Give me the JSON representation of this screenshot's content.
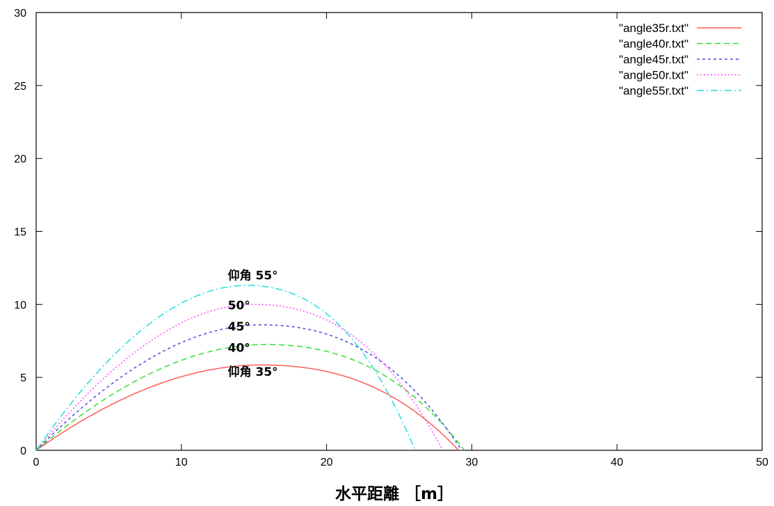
{
  "chart_data": {
    "type": "line",
    "title": "",
    "xlabel": "水平距離 ［m］",
    "ylabel": "",
    "xlim": [
      0,
      50
    ],
    "ylim": [
      0,
      30
    ],
    "x_ticks": [
      0,
      10,
      20,
      30,
      40,
      50
    ],
    "y_ticks": [
      0,
      5,
      10,
      15,
      20,
      25,
      30
    ],
    "grid": false,
    "legend_position": "top-right",
    "series": [
      {
        "name": "\"angle35r.txt\"",
        "color": "#ff5a5a",
        "dash": "solid",
        "angle_deg": 35,
        "peak_x": 15.5,
        "peak_y": 5.85,
        "range_x": 29.1
      },
      {
        "name": "\"angle40r.txt\"",
        "color": "#33dd33",
        "dash": "dashed",
        "angle_deg": 40,
        "peak_x": 15.8,
        "peak_y": 7.25,
        "range_x": 29.5
      },
      {
        "name": "\"angle45r.txt\"",
        "color": "#4a4ae0",
        "dash": "short-dashed",
        "angle_deg": 45,
        "peak_x": 15.5,
        "peak_y": 8.6,
        "range_x": 29.3
      },
      {
        "name": "\"angle50r.txt\"",
        "color": "#ff44ff",
        "dash": "dotted",
        "angle_deg": 50,
        "peak_x": 15.0,
        "peak_y": 10.0,
        "range_x": 28.0
      },
      {
        "name": "\"angle55r.txt\"",
        "color": "#22dddd",
        "dash": "dash-dot",
        "angle_deg": 55,
        "peak_x": 14.5,
        "peak_y": 11.3,
        "range_x": 26.1
      }
    ],
    "annotations": [
      {
        "text": "仰角 55°",
        "x": 13.2,
        "y": 11.7
      },
      {
        "text": "50°",
        "x": 13.2,
        "y": 9.65
      },
      {
        "text": "45°",
        "x": 13.2,
        "y": 8.2
      },
      {
        "text": "40°",
        "x": 13.2,
        "y": 6.75
      },
      {
        "text": "仰角 35°",
        "x": 13.2,
        "y": 5.1
      }
    ]
  }
}
